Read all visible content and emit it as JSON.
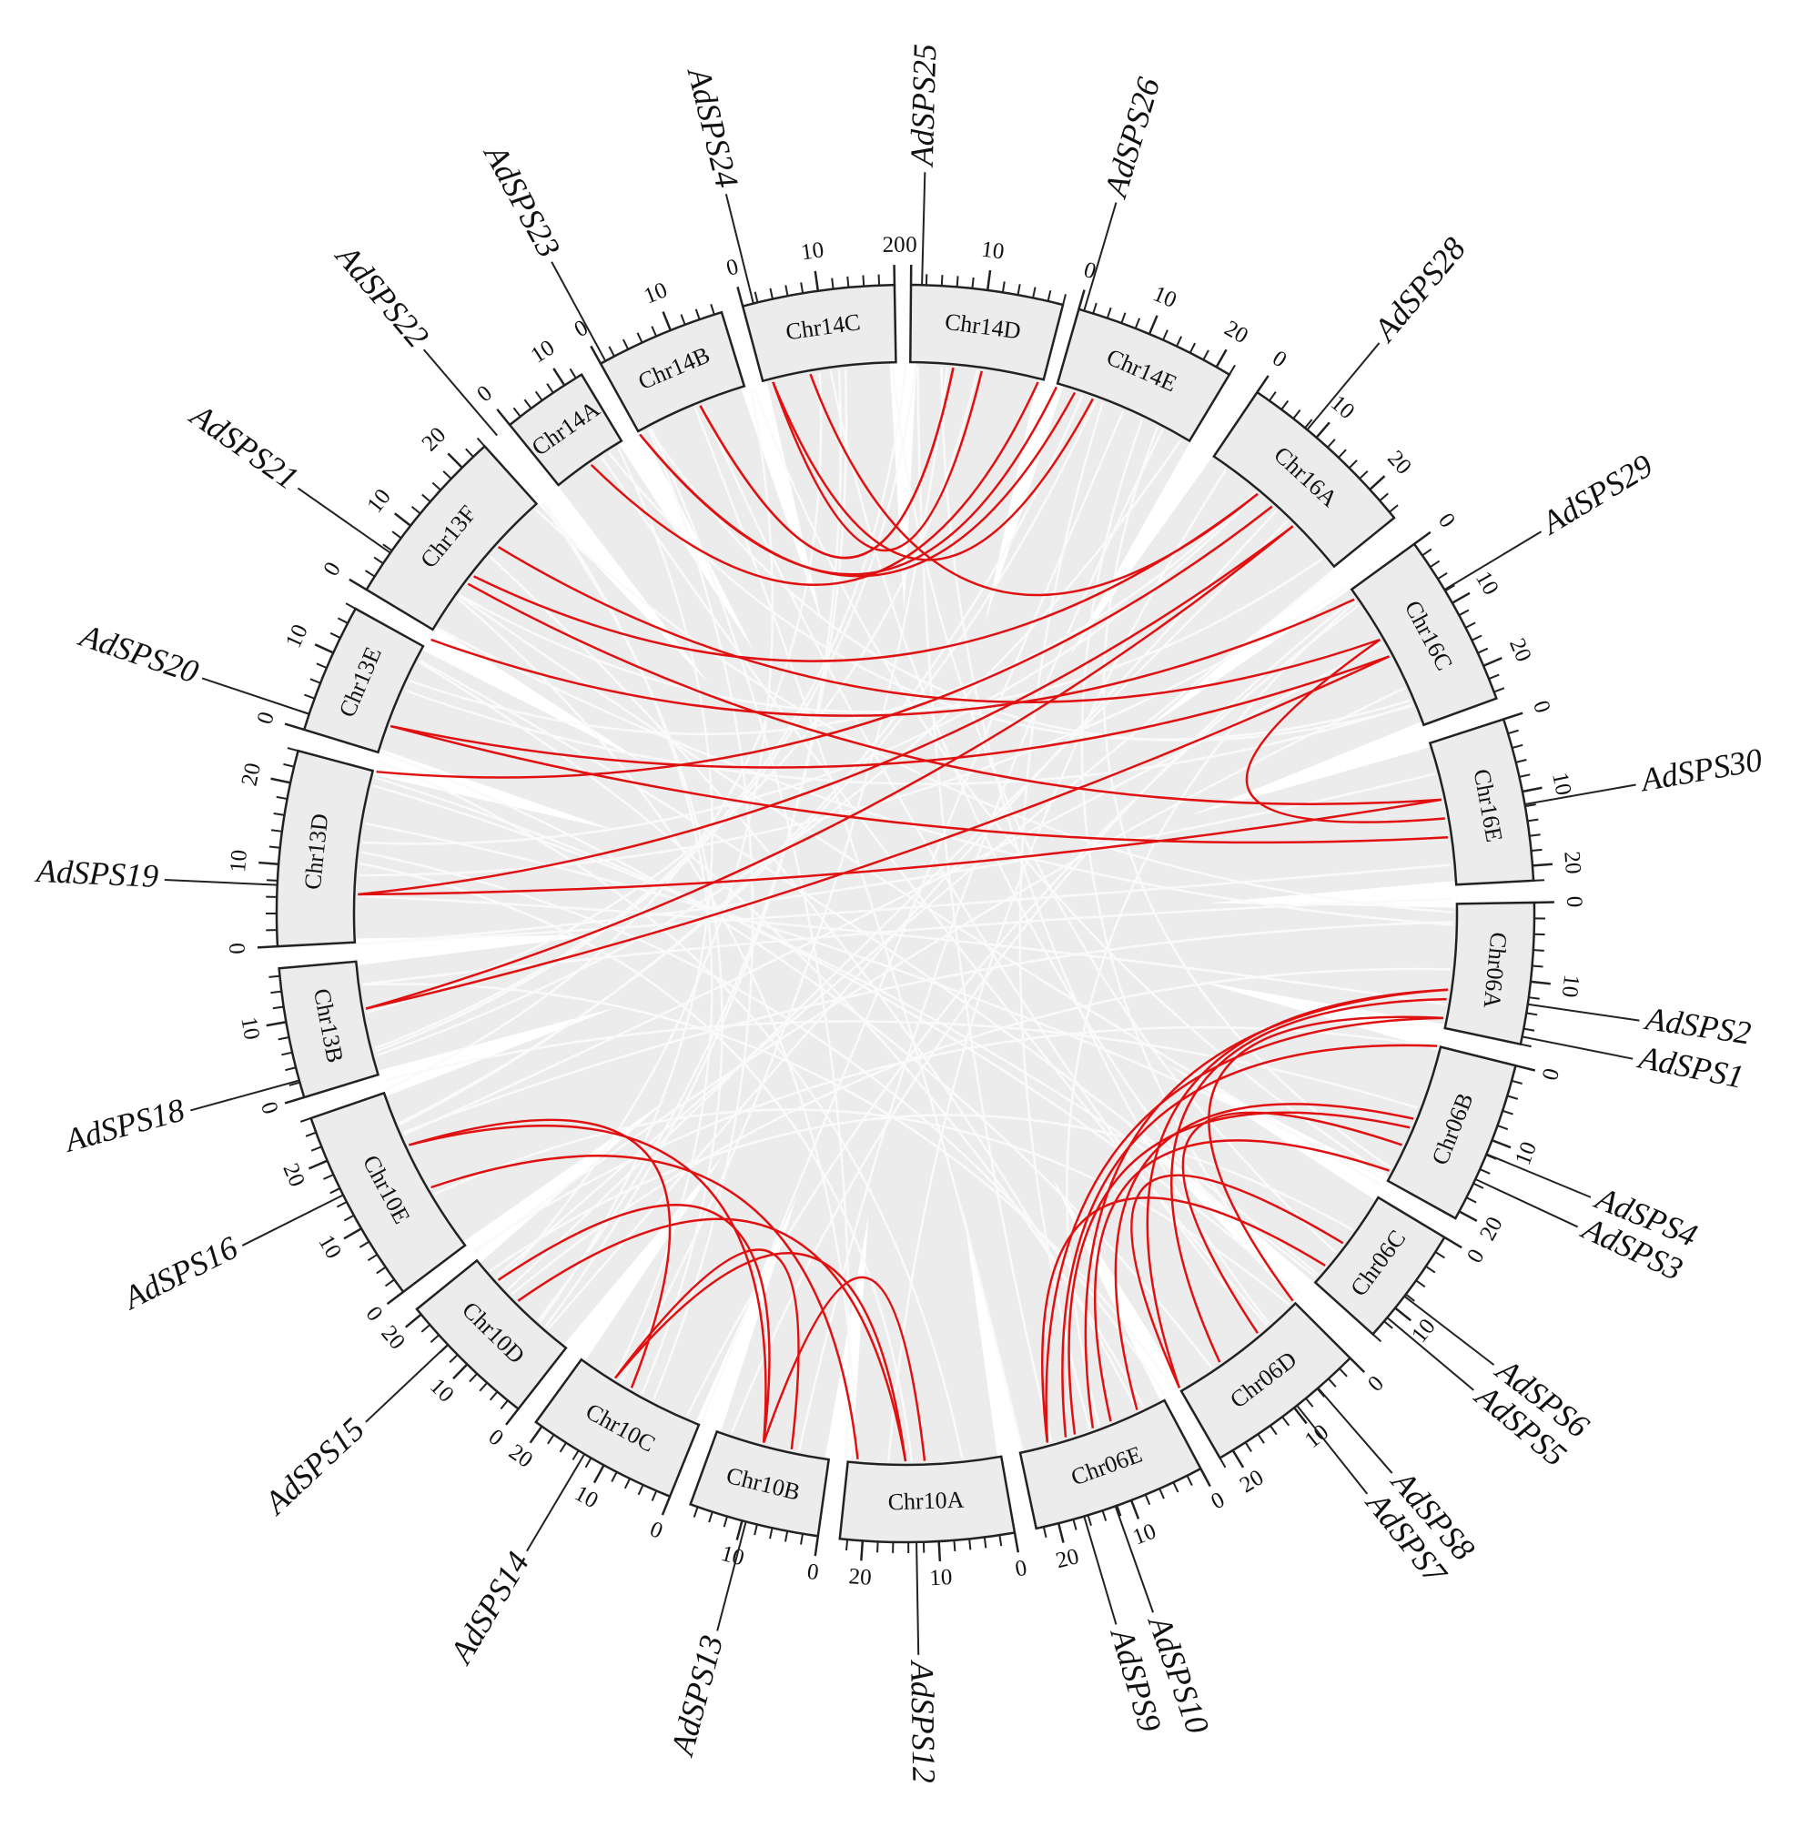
{
  "chromosomes": [
    {
      "label": "Chr14D",
      "ticks": [
        0,
        10
      ]
    },
    {
      "label": "Chr14E",
      "ticks": [
        0,
        10,
        20
      ]
    },
    {
      "label": "Chr16A",
      "ticks": [
        0,
        10,
        20
      ]
    },
    {
      "label": "Chr16C",
      "ticks": [
        0,
        10,
        20
      ]
    },
    {
      "label": "Chr16E",
      "ticks": [
        0,
        10,
        20
      ]
    },
    {
      "label": "Chr06A",
      "ticks": [
        0,
        10
      ]
    },
    {
      "label": "Chr06B",
      "ticks": [
        0,
        10,
        20
      ]
    },
    {
      "label": "Chr06C",
      "ticks": [
        0,
        10
      ]
    },
    {
      "label": "Chr06D",
      "ticks": [
        0,
        10,
        20
      ]
    },
    {
      "label": "Chr06E",
      "ticks": [
        0,
        10,
        20
      ]
    },
    {
      "label": "Chr10A",
      "ticks": [
        0,
        10,
        20
      ]
    },
    {
      "label": "Chr10B",
      "ticks": [
        0,
        10
      ]
    },
    {
      "label": "Chr10C",
      "ticks": [
        0,
        10,
        20
      ]
    },
    {
      "label": "Chr10D",
      "ticks": [
        0,
        10,
        20
      ]
    },
    {
      "label": "Chr10E",
      "ticks": [
        0,
        10,
        20
      ]
    },
    {
      "label": "Chr13B",
      "ticks": [
        0,
        10
      ]
    },
    {
      "label": "Chr13D",
      "ticks": [
        0,
        10,
        20
      ]
    },
    {
      "label": "Chr13E",
      "ticks": [
        0,
        10
      ]
    },
    {
      "label": "Chr13F",
      "ticks": [
        0,
        10,
        20
      ]
    },
    {
      "label": "Chr14A",
      "ticks": [
        0,
        10
      ]
    },
    {
      "label": "Chr14B",
      "ticks": [
        0,
        10
      ]
    },
    {
      "label": "Chr14C",
      "ticks": [
        0,
        10,
        20
      ]
    }
  ],
  "genes": [
    {
      "label": "AdSPS1"
    },
    {
      "label": "AdSPS2"
    },
    {
      "label": "AdSPS3"
    },
    {
      "label": "AdSPS4"
    },
    {
      "label": "AdSPS5"
    },
    {
      "label": "AdSPS6"
    },
    {
      "label": "AdSPS7"
    },
    {
      "label": "AdSPS8"
    },
    {
      "label": "AdSPS9"
    },
    {
      "label": "AdSPS10"
    },
    {
      "label": "AdSPS12"
    },
    {
      "label": "AdSPS13"
    },
    {
      "label": "AdSPS14"
    },
    {
      "label": "AdSPS15"
    },
    {
      "label": "AdSPS16"
    },
    {
      "label": "AdSPS18"
    },
    {
      "label": "AdSPS19"
    },
    {
      "label": "AdSPS20"
    },
    {
      "label": "AdSPS21"
    },
    {
      "label": "AdSPS22"
    },
    {
      "label": "AdSPS23"
    },
    {
      "label": "AdSPS24"
    },
    {
      "label": "AdSPS25"
    },
    {
      "label": "AdSPS26"
    },
    {
      "label": "AdSPS28"
    },
    {
      "label": "AdSPS29"
    },
    {
      "label": "AdSPS30"
    }
  ]
}
